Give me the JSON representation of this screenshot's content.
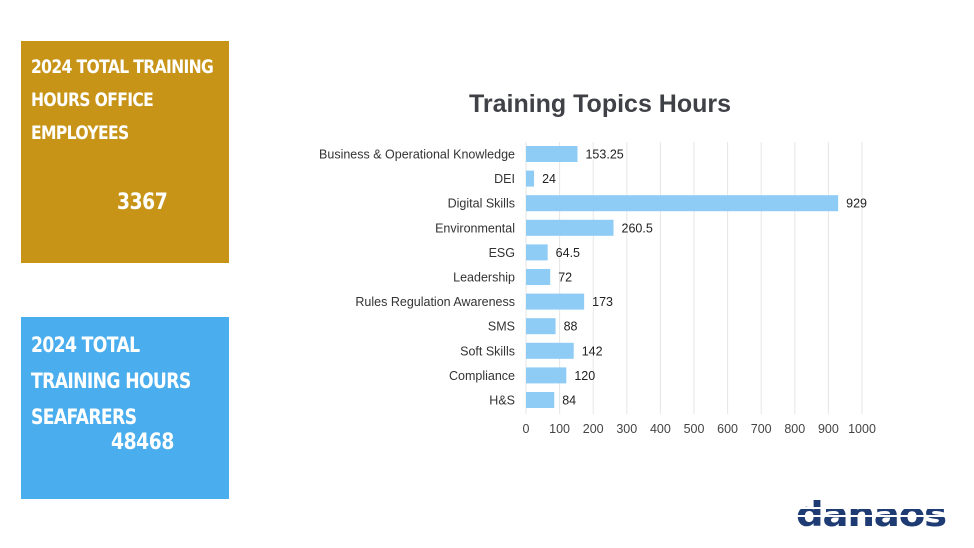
{
  "kpi_office": {
    "title": "2024 Total Training Hours Office Employees",
    "value": "3367",
    "color": "#c79418"
  },
  "kpi_seafarers": {
    "title": "2024 Total Training Hours Seafarers",
    "value": "48468",
    "color": "#4aaded"
  },
  "logo": {
    "text": "danaos",
    "color": "#1f3b73"
  },
  "chart_data": {
    "type": "bar",
    "orientation": "horizontal",
    "title": "Training Topics Hours",
    "categories": [
      "Business & Operational Knowledge",
      "DEI",
      "Digital Skills",
      "Environmental",
      "ESG",
      "Leadership",
      "Rules Regulation Awareness",
      "SMS",
      "Soft Skills",
      "Compliance",
      "H&S"
    ],
    "values": [
      153.25,
      24,
      929,
      260.5,
      64.5,
      72,
      173,
      88,
      142,
      120,
      84
    ],
    "value_labels": [
      "153.25",
      "24",
      "929",
      "260.5",
      "64.5",
      "72",
      "173",
      "88",
      "142",
      "120",
      "84"
    ],
    "xlim": [
      0,
      1000
    ],
    "xticks": [
      0,
      100,
      200,
      300,
      400,
      500,
      600,
      700,
      800,
      900,
      1000
    ],
    "bar_color": "#8ecbf5",
    "grid": true
  }
}
